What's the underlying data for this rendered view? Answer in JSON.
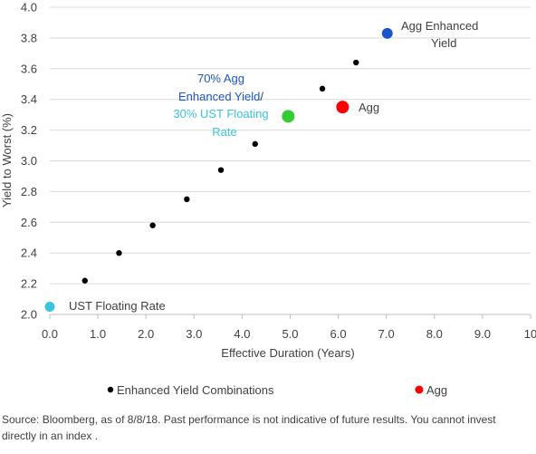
{
  "chart_data": {
    "type": "scatter",
    "xlabel": "Effective Duration (Years)",
    "ylabel": "Yield to Worst (%)",
    "xlim": [
      0,
      10
    ],
    "ylim": [
      2.0,
      4.0
    ],
    "x_ticks": [
      "0.0",
      "1.0",
      "2.0",
      "3.0",
      "4.0",
      "5.0",
      "6.0",
      "7.0",
      "8.0",
      "9.0",
      "10"
    ],
    "y_ticks": [
      "2.0",
      "2.2",
      "2.4",
      "2.6",
      "2.8",
      "3.0",
      "3.2",
      "3.4",
      "3.6",
      "3.8",
      "4.0"
    ],
    "grid": "horizontal",
    "legend_position": "bottom",
    "series": [
      {
        "name": "Enhanced Yield Combinations",
        "color": "#000000",
        "points": [
          {
            "x": 0.73,
            "y": 2.22
          },
          {
            "x": 1.44,
            "y": 2.4
          },
          {
            "x": 2.14,
            "y": 2.58
          },
          {
            "x": 2.85,
            "y": 2.75
          },
          {
            "x": 3.56,
            "y": 2.94
          },
          {
            "x": 4.27,
            "y": 3.11
          },
          {
            "x": 5.67,
            "y": 3.47
          },
          {
            "x": 6.37,
            "y": 3.64
          }
        ]
      },
      {
        "name": "Agg",
        "color": "#ff0000",
        "points": [
          {
            "x": 6.09,
            "y": 3.35
          }
        ]
      }
    ],
    "highlighted_points": [
      {
        "label": "UST Floating Rate",
        "x": 0.0,
        "y": 2.05,
        "color": "#3ac4e0"
      },
      {
        "label": "70% Agg Enhanced Yield/ 30% UST Floating Rate",
        "x": 4.96,
        "y": 3.29,
        "color": "#33cc33"
      },
      {
        "label": "Agg Enhanced Yield",
        "x": 7.02,
        "y": 3.83,
        "color": "#1a56c9"
      }
    ],
    "annotations": {
      "agg_enhanced_line1": "Agg Enhanced",
      "agg_enhanced_line2": "Yield",
      "agg": "Agg",
      "ust": "UST Floating Rate",
      "combo_line1": "70% Agg",
      "combo_line2_a": "Enhanced Yield",
      "combo_line2_b": "/",
      "combo_line3": "30% UST Floating",
      "combo_line4": "Rate"
    },
    "colors": {
      "combo_label_blue": "#1a56c9",
      "combo_label_teal": "#3ac4e0",
      "grid": "#d9d9d9",
      "text": "#404040"
    }
  },
  "footer": {
    "source": "Source: Bloomberg, as of 8/8/18. Past performance is not indicative of future results. You cannot invest directly in an index ."
  }
}
